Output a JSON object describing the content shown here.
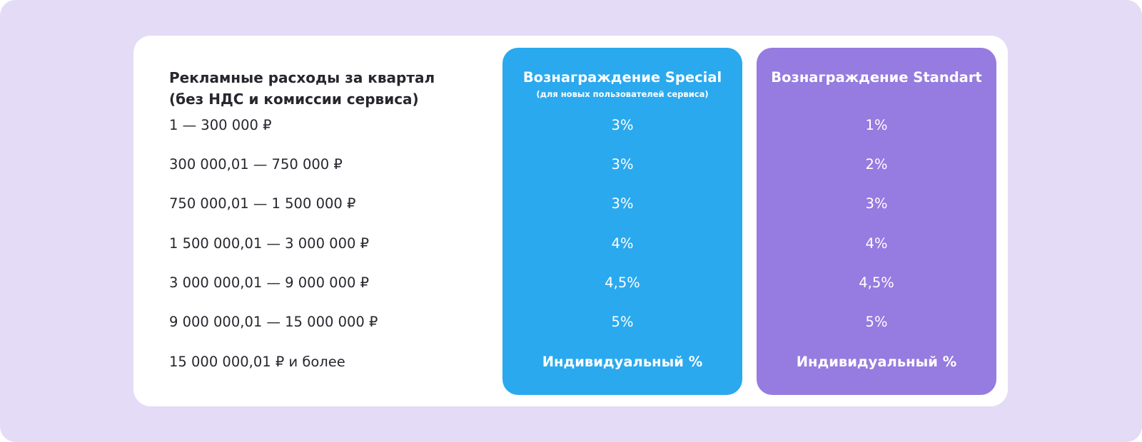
{
  "table": {
    "header": {
      "range_line1": "Рекламные расходы за квартал",
      "range_line2": "(без НДС и комиссии сервиса)",
      "special_title": "Вознаграждение Special",
      "special_subtitle": "(для новых пользователей сервиса)",
      "standart_title": "Вознаграждение Standart"
    },
    "rows": [
      {
        "range": "1 — 300 000 ₽",
        "special": "3%",
        "standart": "1%"
      },
      {
        "range": "300 000,01 — 750 000 ₽",
        "special": "3%",
        "standart": "2%"
      },
      {
        "range": "750 000,01 — 1 500 000 ₽",
        "special": "3%",
        "standart": "3%"
      },
      {
        "range": "1 500 000,01 — 3 000 000 ₽",
        "special": "4%",
        "standart": "4%"
      },
      {
        "range": "3 000 000,01 — 9 000 000 ₽",
        "special": "4,5%",
        "standart": "4,5%"
      },
      {
        "range": "9 000 000,01 — 15 000 000 ₽",
        "special": "5%",
        "standart": "5%"
      },
      {
        "range": "15 000 000,01 ₽ и более",
        "special": "Индивидуальный %",
        "standart": "Индивидуальный %"
      }
    ]
  },
  "colors": {
    "background": "#e4dbf6",
    "card": "#ffffff",
    "special": "#2aa9ee",
    "standart": "#967be0",
    "text": "#26262e"
  }
}
